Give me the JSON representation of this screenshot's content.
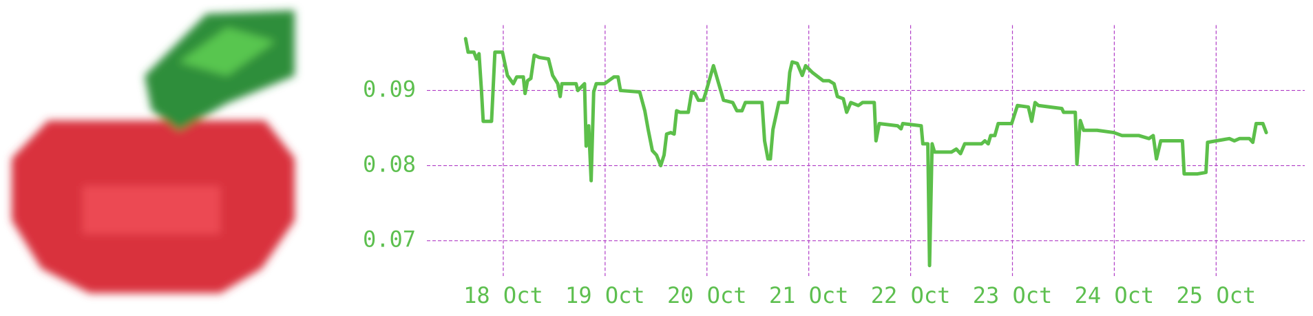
{
  "chart_data": {
    "type": "line",
    "color": "#5cbf4a",
    "grid": true,
    "x": [
      17.63,
      17.655,
      17.712,
      17.737,
      17.762,
      17.786,
      17.803,
      17.885,
      17.918,
      17.992,
      18.041,
      18.099,
      18.132,
      18.197,
      18.214,
      18.238,
      18.271,
      18.304,
      18.354,
      18.444,
      18.485,
      18.535,
      18.559,
      18.576,
      18.715,
      18.732,
      18.798,
      18.814,
      18.839,
      18.863,
      18.888,
      18.913,
      18.995,
      19.086,
      19.127,
      19.151,
      19.34,
      19.39,
      19.423,
      19.464,
      19.505,
      19.546,
      19.579,
      19.604,
      19.645,
      19.678,
      19.702,
      19.735,
      19.817,
      19.85,
      19.883,
      19.916,
      19.965,
      19.99,
      20.064,
      20.163,
      20.253,
      20.294,
      20.344,
      20.377,
      20.541,
      20.566,
      20.599,
      20.623,
      20.648,
      20.706,
      20.788,
      20.813,
      20.837,
      20.887,
      20.936,
      20.969,
      21.035,
      21.141,
      21.199,
      21.248,
      21.281,
      21.339,
      21.372,
      21.413,
      21.487,
      21.528,
      21.643,
      21.66,
      21.692,
      21.873,
      21.906,
      21.923,
      22.104,
      22.12,
      22.169,
      22.186,
      22.211,
      22.235,
      22.4,
      22.449,
      22.49,
      22.531,
      22.696,
      22.729,
      22.762,
      22.786,
      22.827,
      22.86,
      22.992,
      23.049,
      23.156,
      23.189,
      23.222,
      23.255,
      23.485,
      23.502,
      23.617,
      23.633,
      23.666,
      23.699,
      23.831,
      23.995,
      24.077,
      24.242,
      24.34,
      24.382,
      24.414,
      24.456,
      24.669,
      24.686,
      24.817,
      24.9,
      24.916,
      25.13,
      25.179,
      25.229,
      25.327,
      25.36,
      25.393,
      25.459,
      25.492
    ],
    "values": [
      0.0969,
      0.0951,
      0.0951,
      0.0942,
      0.0949,
      0.09,
      0.0859,
      0.0859,
      0.0951,
      0.0951,
      0.092,
      0.0909,
      0.0918,
      0.0918,
      0.0896,
      0.0913,
      0.0916,
      0.0947,
      0.0944,
      0.0942,
      0.092,
      0.0909,
      0.0892,
      0.0909,
      0.0909,
      0.09,
      0.0909,
      0.0826,
      0.0853,
      0.078,
      0.0898,
      0.0909,
      0.0909,
      0.0918,
      0.0918,
      0.09,
      0.0898,
      0.0873,
      0.0848,
      0.082,
      0.0814,
      0.08,
      0.0814,
      0.0842,
      0.0844,
      0.0842,
      0.0873,
      0.0871,
      0.0871,
      0.0898,
      0.0896,
      0.0887,
      0.0887,
      0.0898,
      0.0933,
      0.0887,
      0.0884,
      0.0873,
      0.0873,
      0.0884,
      0.0884,
      0.0833,
      0.0809,
      0.0809,
      0.0848,
      0.0884,
      0.0884,
      0.0924,
      0.0938,
      0.0936,
      0.092,
      0.0933,
      0.0924,
      0.0913,
      0.0913,
      0.0909,
      0.0892,
      0.0889,
      0.0871,
      0.0884,
      0.088,
      0.0884,
      0.0884,
      0.0833,
      0.0856,
      0.0853,
      0.0849,
      0.0856,
      0.0853,
      0.0829,
      0.0829,
      0.0667,
      0.0829,
      0.0818,
      0.0818,
      0.0822,
      0.0816,
      0.0829,
      0.0829,
      0.0833,
      0.0829,
      0.084,
      0.084,
      0.0856,
      0.0856,
      0.088,
      0.0878,
      0.0859,
      0.0884,
      0.088,
      0.0876,
      0.0871,
      0.0871,
      0.0802,
      0.086,
      0.0847,
      0.0847,
      0.0844,
      0.084,
      0.084,
      0.0836,
      0.084,
      0.0809,
      0.0833,
      0.0833,
      0.0789,
      0.0789,
      0.0791,
      0.0831,
      0.0836,
      0.0833,
      0.0836,
      0.0836,
      0.0831,
      0.0856,
      0.0856,
      0.0844
    ],
    "xlim": [
      17.25,
      25.87
    ],
    "ylim": [
      0.0653,
      0.0987
    ],
    "xticks": [
      {
        "value": 18,
        "label": "18 Oct"
      },
      {
        "value": 19,
        "label": "19 Oct"
      },
      {
        "value": 20,
        "label": "20 Oct"
      },
      {
        "value": 21,
        "label": "21 Oct"
      },
      {
        "value": 22,
        "label": "22 Oct"
      },
      {
        "value": 23,
        "label": "23 Oct"
      },
      {
        "value": 24,
        "label": "24 Oct"
      },
      {
        "value": 25,
        "label": "25 Oct"
      }
    ],
    "yticks": [
      0.07,
      0.08,
      0.09
    ]
  }
}
